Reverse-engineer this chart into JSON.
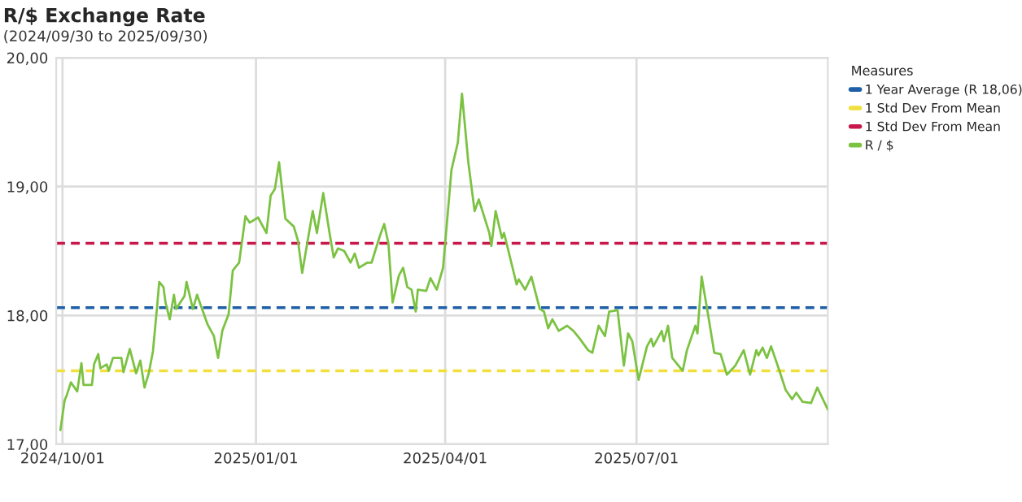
{
  "chart_data": {
    "type": "line",
    "title": "R/$ Exchange Rate",
    "subtitle": "(2024/09/30 to 2025/09/30)",
    "legend_title": "Measures",
    "x": [
      "2024-09-30",
      "2024-10-02",
      "2024-10-03",
      "2024-10-05",
      "2024-10-08",
      "2024-10-10",
      "2024-10-11",
      "2024-10-15",
      "2024-10-16",
      "2024-10-18",
      "2024-10-19",
      "2024-10-22",
      "2024-10-23",
      "2024-10-25",
      "2024-10-29",
      "2024-10-30",
      "2024-11-02",
      "2024-11-05",
      "2024-11-07",
      "2024-11-09",
      "2024-11-11",
      "2024-11-13",
      "2024-11-15",
      "2024-11-16",
      "2024-11-18",
      "2024-11-19",
      "2024-11-21",
      "2024-11-23",
      "2024-11-24",
      "2024-11-28",
      "2024-11-29",
      "2024-12-02",
      "2024-12-04",
      "2024-12-09",
      "2024-12-12",
      "2024-12-14",
      "2024-12-16",
      "2024-12-19",
      "2024-12-21",
      "2024-12-24",
      "2024-12-27",
      "2024-12-29",
      "2025-01-02",
      "2025-01-06",
      "2025-01-08",
      "2025-01-10",
      "2025-01-12",
      "2025-01-15",
      "2025-01-19",
      "2025-01-21",
      "2025-01-23",
      "2025-01-28",
      "2025-01-30",
      "2025-02-02",
      "2025-02-05",
      "2025-02-07",
      "2025-02-09",
      "2025-02-12",
      "2025-02-15",
      "2025-02-17",
      "2025-02-19",
      "2025-02-23",
      "2025-02-25",
      "2025-03-01",
      "2025-03-03",
      "2025-03-05",
      "2025-03-07",
      "2025-03-10",
      "2025-03-12",
      "2025-03-14",
      "2025-03-16",
      "2025-03-18",
      "2025-03-19",
      "2025-03-23",
      "2025-03-25",
      "2025-03-28",
      "2025-03-31",
      "2025-04-04",
      "2025-04-07",
      "2025-04-09",
      "2025-04-12",
      "2025-04-15",
      "2025-04-17",
      "2025-04-22",
      "2025-04-23",
      "2025-04-25",
      "2025-04-28",
      "2025-04-29",
      "2025-05-05",
      "2025-05-06",
      "2025-05-09",
      "2025-05-12",
      "2025-05-16",
      "2025-05-18",
      "2025-05-20",
      "2025-05-22",
      "2025-05-25",
      "2025-05-29",
      "2025-06-01",
      "2025-06-04",
      "2025-06-08",
      "2025-06-10",
      "2025-06-13",
      "2025-06-16",
      "2025-06-18",
      "2025-06-22",
      "2025-06-25",
      "2025-06-27",
      "2025-06-29",
      "2025-07-02",
      "2025-07-06",
      "2025-07-08",
      "2025-07-09",
      "2025-07-13",
      "2025-07-14",
      "2025-07-16",
      "2025-07-18",
      "2025-07-23",
      "2025-07-25",
      "2025-07-29",
      "2025-07-30",
      "2025-08-01",
      "2025-08-04",
      "2025-08-07",
      "2025-08-10",
      "2025-08-13",
      "2025-08-17",
      "2025-08-21",
      "2025-08-24",
      "2025-08-27",
      "2025-08-28",
      "2025-08-30",
      "2025-09-01",
      "2025-09-03",
      "2025-09-07",
      "2025-09-10",
      "2025-09-13",
      "2025-09-15",
      "2025-09-18",
      "2025-09-22",
      "2025-09-25",
      "2025-09-30"
    ],
    "series": [
      {
        "name": "R / $",
        "color": "#7cc242",
        "values": [
          17.11,
          17.34,
          17.38,
          17.48,
          17.41,
          17.63,
          17.46,
          17.46,
          17.62,
          17.7,
          17.59,
          17.62,
          17.57,
          17.67,
          17.67,
          17.56,
          17.74,
          17.55,
          17.65,
          17.44,
          17.55,
          17.72,
          18.07,
          18.26,
          18.22,
          18.1,
          17.97,
          18.16,
          18.05,
          18.15,
          18.26,
          18.05,
          18.16,
          17.93,
          17.84,
          17.67,
          17.88,
          18.01,
          18.35,
          18.41,
          18.77,
          18.72,
          18.76,
          18.64,
          18.93,
          18.98,
          19.19,
          18.75,
          18.69,
          18.58,
          18.33,
          18.81,
          18.64,
          18.95,
          18.64,
          18.45,
          18.52,
          18.5,
          18.41,
          18.48,
          18.37,
          18.41,
          18.41,
          18.62,
          18.71,
          18.56,
          18.1,
          18.31,
          18.37,
          18.22,
          18.2,
          18.03,
          18.2,
          18.19,
          18.29,
          18.2,
          18.37,
          19.13,
          19.34,
          19.72,
          19.19,
          18.81,
          18.9,
          18.64,
          18.54,
          18.81,
          18.6,
          18.64,
          18.24,
          18.28,
          18.2,
          18.3,
          18.05,
          18.03,
          17.9,
          17.97,
          17.88,
          17.92,
          17.88,
          17.82,
          17.73,
          17.71,
          17.92,
          17.84,
          18.03,
          18.04,
          17.61,
          17.86,
          17.8,
          17.5,
          17.76,
          17.82,
          17.76,
          17.88,
          17.8,
          17.92,
          17.67,
          17.57,
          17.73,
          17.92,
          17.86,
          18.3,
          18.01,
          17.71,
          17.7,
          17.54,
          17.61,
          17.73,
          17.54,
          17.73,
          17.69,
          17.75,
          17.67,
          17.76,
          17.57,
          17.42,
          17.35,
          17.4,
          17.33,
          17.32,
          17.44,
          17.27
        ]
      }
    ],
    "ref_lines": [
      {
        "axis": "y",
        "value": 18.06,
        "label": "1 Year Average (R 18,06)",
        "color": "#1f5fa8",
        "line_style": "dashed"
      },
      {
        "axis": "y",
        "value": 17.57,
        "label": "1 Std Dev From Mean",
        "color": "#f0df3c",
        "line_style": "dashed"
      },
      {
        "axis": "y",
        "value": 18.56,
        "label": "1 Std Dev From Mean",
        "color": "#c8174a",
        "line_style": "dashed"
      }
    ],
    "xlim": [
      "2024-09-28",
      "2025-09-30"
    ],
    "xticks": [
      {
        "value": "2024-10-01",
        "label": "2024/10/01"
      },
      {
        "value": "2025-01-01",
        "label": "2025/01/01"
      },
      {
        "value": "2025-04-01",
        "label": "2025/04/01"
      },
      {
        "value": "2025-07-01",
        "label": "2025/07/01"
      }
    ],
    "ylim": [
      17,
      20
    ],
    "yticks": [
      {
        "value": 17,
        "label": "17,00"
      },
      {
        "value": 18,
        "label": "18,00"
      },
      {
        "value": 19,
        "label": "19,00"
      },
      {
        "value": 20,
        "label": "20,00"
      }
    ],
    "grid": true,
    "legend": "top right",
    "marker": "none",
    "line_style": "solid"
  }
}
